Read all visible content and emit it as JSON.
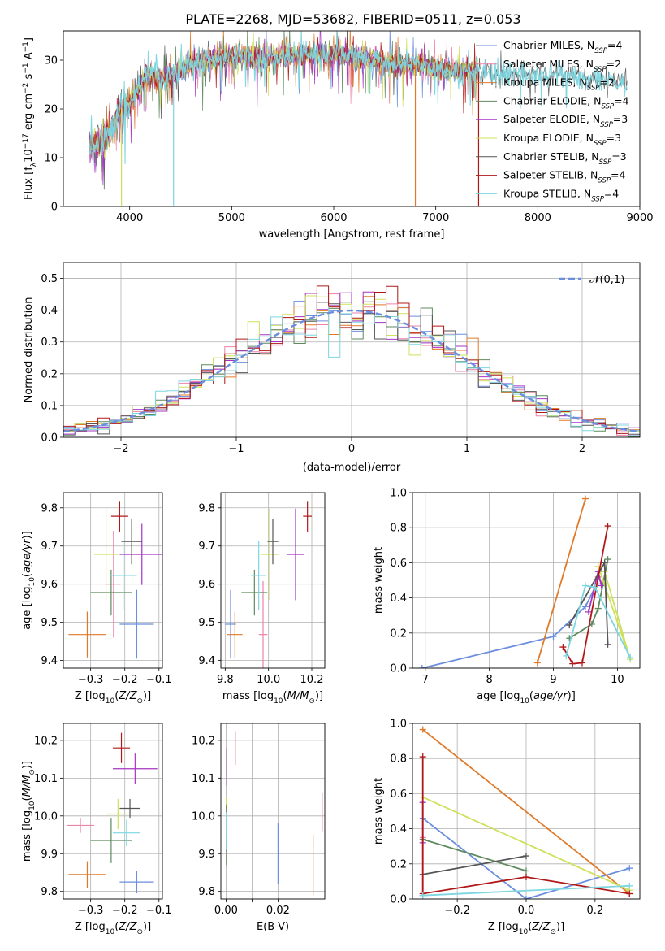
{
  "figure_title": "PLATE=2268, MJD=53682, FIBERID=0511, z=0.053",
  "series_meta": [
    {
      "name": "Chabrier MILES",
      "n": "4",
      "color": "#6b8ede"
    },
    {
      "name": "Salpeter MILES",
      "n": "2",
      "color": "#ee82a8"
    },
    {
      "name": "Kroupa MILES",
      "n": "2",
      "color": "#e07a2a"
    },
    {
      "name": "Chabrier ELODIE",
      "n": "4",
      "color": "#5f8a5f"
    },
    {
      "name": "Salpeter ELODIE",
      "n": "3",
      "color": "#a435c2"
    },
    {
      "name": "Kroupa ELODIE",
      "n": "3",
      "color": "#cfe05a"
    },
    {
      "name": "Chabrier STELIB",
      "n": "3",
      "color": "#555555"
    },
    {
      "name": "Salpeter STELIB",
      "n": "4",
      "color": "#b01818"
    },
    {
      "name": "Kroupa STELIB",
      "n": "4",
      "color": "#7dd6e0"
    }
  ],
  "chart_data": [
    {
      "id": "spectrum",
      "type": "line",
      "xlabel": "wavelength [Angstrom, rest frame]",
      "ylabel": "Flux [f_λ10^-17 erg cm^-2 s^-1 A^-1]",
      "xlim": [
        3350,
        9000
      ],
      "ylim": [
        0,
        36
      ],
      "xticks": [
        4000,
        5000,
        6000,
        7000,
        8000,
        9000
      ],
      "yticks": [
        0,
        10,
        20,
        30
      ],
      "grid": false,
      "legend": "top-right",
      "x_range_data": [
        3600,
        8900
      ],
      "continuum": [
        [
          3600,
          12
        ],
        [
          3700,
          13
        ],
        [
          3800,
          15
        ],
        [
          3850,
          17
        ],
        [
          3900,
          20
        ],
        [
          4000,
          21
        ],
        [
          4100,
          25
        ],
        [
          4200,
          27
        ],
        [
          4300,
          26
        ],
        [
          4400,
          27
        ],
        [
          4500,
          28
        ],
        [
          4700,
          30
        ],
        [
          4900,
          30.5
        ],
        [
          5100,
          31
        ],
        [
          5300,
          30
        ],
        [
          5500,
          31
        ],
        [
          5700,
          31
        ],
        [
          5900,
          31.5
        ],
        [
          6100,
          31
        ],
        [
          6300,
          30.5
        ],
        [
          6500,
          29.5
        ],
        [
          6700,
          29
        ],
        [
          6900,
          29
        ],
        [
          7100,
          28
        ],
        [
          7300,
          28
        ],
        [
          7500,
          27.5
        ],
        [
          7700,
          27
        ],
        [
          8000,
          27
        ],
        [
          8200,
          27
        ],
        [
          8400,
          26
        ],
        [
          8600,
          26
        ],
        [
          8800,
          25.5
        ],
        [
          8900,
          25.5
        ]
      ],
      "notable_dips": [
        [
          4430,
          0
        ],
        [
          6800,
          0
        ],
        [
          7420,
          0
        ],
        [
          3920,
          0
        ]
      ]
    },
    {
      "id": "residuals",
      "type": "step",
      "xlabel": "(data-model)/error",
      "ylabel": "Normed distribution",
      "xlim": [
        -2.5,
        2.5
      ],
      "ylim": [
        0,
        0.55
      ],
      "xticks": [
        -2,
        -1,
        0,
        1,
        2
      ],
      "yticks": [
        0.0,
        0.1,
        0.2,
        0.3,
        0.4,
        0.5
      ],
      "grid": true,
      "legend": "top-right",
      "reference_label": "𝒩(0,1)",
      "bin_width": 0.1
    },
    {
      "id": "age-vs-Z",
      "type": "errorbar",
      "xlabel": "Z [log10(Z/Z☉)]",
      "ylabel": "age [log10(age/yr)]",
      "xlim": [
        -0.38,
        -0.09
      ],
      "ylim": [
        9.38,
        9.84
      ],
      "xticks": [
        -0.3,
        -0.2,
        -0.1
      ],
      "yticks": [
        9.4,
        9.5,
        9.6,
        9.7,
        9.8
      ],
      "points": [
        {
          "x": -0.165,
          "y": 9.495,
          "xerr": 0.05,
          "yerr": 0.09,
          "c": 0
        },
        {
          "x": -0.233,
          "y": 9.6,
          "xerr": 0.02,
          "yerr": 0.14,
          "c": 1
        },
        {
          "x": -0.31,
          "y": 9.468,
          "xerr": 0.055,
          "yerr": 0.06,
          "c": 2
        },
        {
          "x": -0.24,
          "y": 9.578,
          "xerr": 0.06,
          "yerr": 0.06,
          "c": 3
        },
        {
          "x": -0.15,
          "y": 9.678,
          "xerr": 0.065,
          "yerr": 0.08,
          "c": 4
        },
        {
          "x": -0.255,
          "y": 9.678,
          "xerr": 0.035,
          "yerr": 0.12,
          "c": 5
        },
        {
          "x": -0.18,
          "y": 9.712,
          "xerr": 0.03,
          "yerr": 0.06,
          "c": 6
        },
        {
          "x": -0.215,
          "y": 9.778,
          "xerr": 0.025,
          "yerr": 0.04,
          "c": 7
        },
        {
          "x": -0.205,
          "y": 9.623,
          "xerr": 0.04,
          "yerr": 0.09,
          "c": 8
        }
      ]
    },
    {
      "id": "age-vs-mass",
      "type": "errorbar",
      "xlabel": "mass [log10(M/M☉)]",
      "ylabel": "",
      "xlim": [
        9.78,
        10.26
      ],
      "ylim": [
        9.38,
        9.84
      ],
      "xticks": [
        9.8,
        10.0,
        10.2
      ],
      "yticks": [
        9.4,
        9.5,
        9.6,
        9.7,
        9.8
      ],
      "points": [
        {
          "x": 9.825,
          "y": 9.495,
          "xerr": 0.025,
          "yerr": 0.09,
          "c": 0
        },
        {
          "x": 9.975,
          "y": 9.468,
          "xerr": 0.02,
          "yerr": 0.14,
          "c": 1
        },
        {
          "x": 9.845,
          "y": 9.468,
          "xerr": 0.035,
          "yerr": 0.06,
          "c": 2
        },
        {
          "x": 9.935,
          "y": 9.578,
          "xerr": 0.06,
          "yerr": 0.06,
          "c": 3
        },
        {
          "x": 10.125,
          "y": 9.678,
          "xerr": 0.04,
          "yerr": 0.12,
          "c": 4
        },
        {
          "x": 10.005,
          "y": 9.678,
          "xerr": 0.04,
          "yerr": 0.12,
          "c": 5
        },
        {
          "x": 10.02,
          "y": 9.712,
          "xerr": 0.025,
          "yerr": 0.06,
          "c": 6
        },
        {
          "x": 10.18,
          "y": 9.778,
          "xerr": 0.02,
          "yerr": 0.04,
          "c": 7
        },
        {
          "x": 9.955,
          "y": 9.623,
          "xerr": 0.035,
          "yerr": 0.09,
          "c": 8
        }
      ]
    },
    {
      "id": "weight-vs-age",
      "type": "line",
      "xlabel": "age [log10(age/yr)]",
      "ylabel": "mass weight",
      "xlim": [
        6.8,
        10.35
      ],
      "ylim": [
        0,
        1.0
      ],
      "xticks": [
        7,
        8,
        9,
        10
      ],
      "yticks": [
        0.0,
        0.2,
        0.4,
        0.6,
        0.8,
        1.0
      ],
      "grid": true,
      "series": [
        {
          "c": 0,
          "x": [
            6.95,
            9.0,
            9.5,
            9.65
          ],
          "y": [
            0.0,
            0.18,
            0.35,
            0.46
          ]
        },
        {
          "c": 1,
          "x": [
            9.7,
            9.75
          ],
          "y": [
            0.52,
            0.48
          ]
        },
        {
          "c": 2,
          "x": [
            8.75,
            9.5
          ],
          "y": [
            0.03,
            0.965
          ]
        },
        {
          "c": 3,
          "x": [
            9.25,
            9.6,
            9.7,
            9.85
          ],
          "y": [
            0.17,
            0.25,
            0.34,
            0.62
          ]
        },
        {
          "c": 4,
          "x": [
            9.55,
            9.7,
            9.75
          ],
          "y": [
            0.32,
            0.55,
            0.47
          ]
        },
        {
          "c": 5,
          "x": [
            9.7,
            10.2,
            9.8
          ],
          "y": [
            0.58,
            0.05,
            0.55
          ]
        },
        {
          "c": 6,
          "x": [
            9.25,
            9.8,
            9.85
          ],
          "y": [
            0.245,
            0.6,
            0.135
          ]
        },
        {
          "c": 7,
          "x": [
            9.15,
            9.3,
            9.45,
            9.85
          ],
          "y": [
            0.12,
            0.025,
            0.03,
            0.81
          ]
        },
        {
          "c": 8,
          "x": [
            9.2,
            9.5,
            9.65,
            10.2
          ],
          "y": [
            0.07,
            0.47,
            0.46,
            0.06
          ]
        }
      ]
    },
    {
      "id": "mass-vs-Z",
      "type": "errorbar",
      "xlabel": "Z [log10(Z/Z☉)]",
      "ylabel": "mass [log10(M/M☉)]",
      "xlim": [
        -0.38,
        -0.09
      ],
      "ylim": [
        9.78,
        10.245
      ],
      "xticks": [
        -0.3,
        -0.2,
        -0.1
      ],
      "yticks": [
        9.8,
        9.9,
        10.0,
        10.1,
        10.2
      ],
      "points": [
        {
          "x": -0.165,
          "y": 9.825,
          "xerr": 0.05,
          "yerr": 0.03,
          "c": 0
        },
        {
          "x": -0.33,
          "y": 9.975,
          "xerr": 0.04,
          "yerr": 0.02,
          "c": 1
        },
        {
          "x": -0.31,
          "y": 9.845,
          "xerr": 0.055,
          "yerr": 0.035,
          "c": 2
        },
        {
          "x": -0.24,
          "y": 9.935,
          "xerr": 0.06,
          "yerr": 0.06,
          "c": 3
        },
        {
          "x": -0.17,
          "y": 10.125,
          "xerr": 0.065,
          "yerr": 0.04,
          "c": 4
        },
        {
          "x": -0.22,
          "y": 10.005,
          "xerr": 0.035,
          "yerr": 0.04,
          "c": 5
        },
        {
          "x": -0.185,
          "y": 10.02,
          "xerr": 0.03,
          "yerr": 0.025,
          "c": 6
        },
        {
          "x": -0.21,
          "y": 10.18,
          "xerr": 0.025,
          "yerr": 0.04,
          "c": 7
        },
        {
          "x": -0.195,
          "y": 9.955,
          "xerr": 0.04,
          "yerr": 0.035,
          "c": 8
        }
      ]
    },
    {
      "id": "mass-vs-ebv",
      "type": "errorbar",
      "xlabel": "E(B-V)",
      "ylabel": "",
      "xlim": [
        -0.002,
        0.038
      ],
      "ylim": [
        9.78,
        10.245
      ],
      "xticks": [
        0.0,
        0.01,
        0.02,
        0.03
      ],
      "xticklabels": [
        "0.00",
        "",
        "0.02",
        ""
      ],
      "yticks": [
        9.8,
        9.9,
        10.0,
        10.1,
        10.2
      ],
      "points": [
        {
          "x": 0.02,
          "y": 9.9,
          "xerr": 0,
          "yerr": 0.08,
          "c": 0
        },
        {
          "x": 0.037,
          "y": 10.01,
          "xerr": 0,
          "yerr": 0.05,
          "c": 1
        },
        {
          "x": 0.0335,
          "y": 9.87,
          "xerr": 0,
          "yerr": 0.08,
          "c": 2
        },
        {
          "x": 0.0002,
          "y": 9.95,
          "xerr": 0,
          "yerr": 0.08,
          "c": 3
        },
        {
          "x": 0.0003,
          "y": 10.13,
          "xerr": 0,
          "yerr": 0.05,
          "c": 4
        },
        {
          "x": 0.0001,
          "y": 10.0,
          "xerr": 0,
          "yerr": 0.05,
          "c": 5
        },
        {
          "x": 0.0002,
          "y": 10.0,
          "xerr": 0,
          "yerr": 0.03,
          "c": 6
        },
        {
          "x": 0.0035,
          "y": 10.18,
          "xerr": 0,
          "yerr": 0.045,
          "c": 7
        },
        {
          "x": 0.0001,
          "y": 9.96,
          "xerr": 0,
          "yerr": 0.05,
          "c": 8
        }
      ]
    },
    {
      "id": "weight-vs-Z",
      "type": "line",
      "xlabel": "Z [log10(Z/Z☉)]",
      "ylabel": "mass weight",
      "xlim": [
        -0.33,
        0.33
      ],
      "ylim": [
        0,
        1.0
      ],
      "xticks": [
        -0.2,
        0.0,
        0.2
      ],
      "yticks": [
        0.0,
        0.2,
        0.4,
        0.6,
        0.8,
        1.0
      ],
      "grid": true,
      "series": [
        {
          "c": 0,
          "x": [
            -0.3,
            0.0,
            0.3
          ],
          "y": [
            0.46,
            0.0,
            0.175
          ]
        },
        {
          "c": 1,
          "x": [
            -0.3,
            -0.3
          ],
          "y": [
            0.35,
            0.02
          ]
        },
        {
          "c": 2,
          "x": [
            -0.3,
            0.3
          ],
          "y": [
            0.965,
            0.03
          ]
        },
        {
          "c": 3,
          "x": [
            -0.3,
            0.0
          ],
          "y": [
            0.34,
            0.16
          ]
        },
        {
          "c": 4,
          "x": [
            -0.3,
            -0.3
          ],
          "y": [
            0.32,
            0.55
          ]
        },
        {
          "c": 5,
          "x": [
            -0.3,
            0.3
          ],
          "y": [
            0.58,
            0.05
          ]
        },
        {
          "c": 6,
          "x": [
            -0.3,
            0.0
          ],
          "y": [
            0.14,
            0.245
          ]
        },
        {
          "c": 7,
          "x": [
            -0.3,
            -0.3,
            0.0,
            0.3
          ],
          "y": [
            0.81,
            0.03,
            0.125,
            0.03
          ]
        },
        {
          "c": 8,
          "x": [
            -0.3,
            0.3
          ],
          "y": [
            0.02,
            0.075
          ]
        }
      ]
    }
  ]
}
